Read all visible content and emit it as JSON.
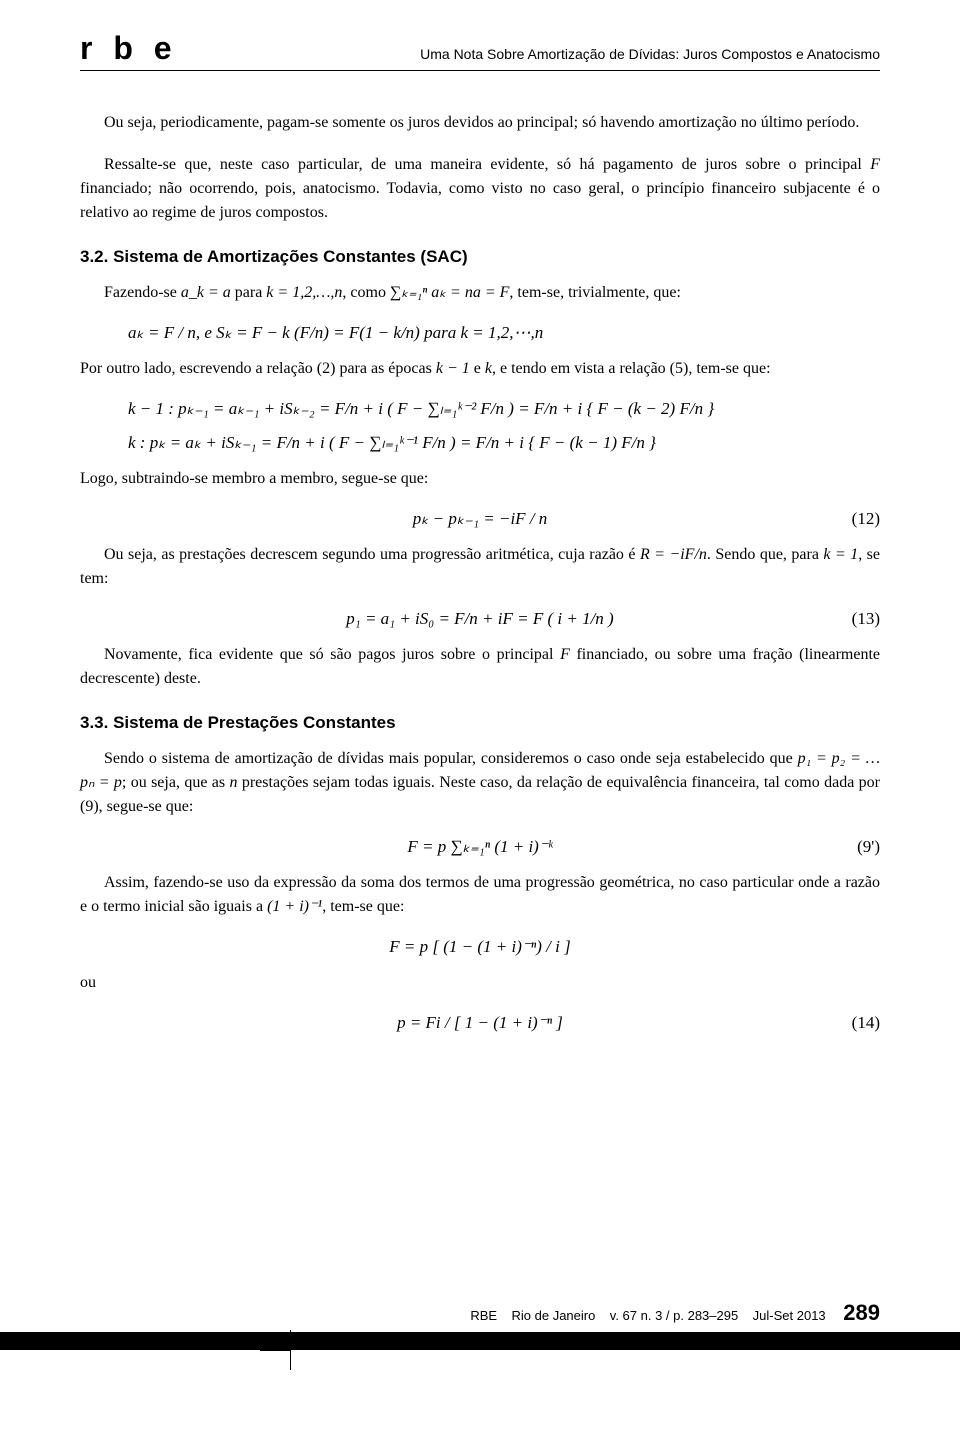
{
  "header": {
    "journal_logo": "r b e",
    "running_title": "Uma Nota Sobre Amortização de Dívidas: Juros Compostos e Anatocismo"
  },
  "para1": "Ou seja, periodicamente, pagam-se somente os juros devidos ao principal; só havendo amortização no último período.",
  "para2_a": "Ressalte-se que, neste caso particular, de uma maneira evidente, só há pagamento de juros sobre o principal ",
  "para2_F": "F",
  "para2_b": " financiado; não ocorrendo, pois, anatocismo. Todavia, como visto no caso geral, o princípio financeiro subjacente é o relativo ao regime de juros compostos.",
  "sec32_heading": "3.2. Sistema de Amortizações Constantes (SAC)",
  "sec32_p1_a": "Fazendo-se ",
  "sec32_p1_m1": "a_k = a",
  "sec32_p1_b": " para ",
  "sec32_p1_m2": "k = 1,2,…,n",
  "sec32_p1_c": ", como ",
  "sec32_p1_m3": "∑ₖ₌₁ⁿ aₖ = na = F",
  "sec32_p1_d": ", tem-se, trivialmente, que:",
  "eq_sac_line": "aₖ = F / n,      e      Sₖ = F − k (F/n) = F(1 − k/n)      para      k = 1,2,⋯,n",
  "sec32_p2_a": "Por outro lado, escrevendo a relação (2) para as épocas ",
  "sec32_p2_m1": "k − 1",
  "sec32_p2_b": " e ",
  "sec32_p2_m2": "k",
  "sec32_p2_c": ", e tendo em vista a relação (5), tem-se que:",
  "eq_km1": "k − 1  :   pₖ₋₁ = aₖ₋₁ + iSₖ₋₂ = F/n + i ( F − ∑ₗ₌₁ᵏ⁻² F/n ) = F/n + i { F − (k − 2) F/n }",
  "eq_k": "k  :   pₖ = aₖ + iSₖ₋₁ = F/n + i ( F − ∑ₗ₌₁ᵏ⁻¹ F/n ) = F/n + i { F − (k − 1) F/n }",
  "sec32_p3": "Logo, subtraindo-se membro a membro, segue-se que:",
  "eq12": "pₖ − pₖ₋₁ = −iF / n",
  "eq12_num": "(12)",
  "sec32_p4_a": "Ou seja, as prestações decrescem segundo uma progressão aritmética, cuja razão é ",
  "sec32_p4_m1": "R = −iF/n",
  "sec32_p4_b": ". Sendo que, para ",
  "sec32_p4_m2": "k = 1",
  "sec32_p4_c": ", se tem:",
  "eq13": "p₁ = a₁ + iS₀ = F/n + iF = F ( i + 1/n )",
  "eq13_num": "(13)",
  "sec32_p5_a": "Novamente, fica evidente que só são pagos juros sobre o principal ",
  "sec32_p5_m1": "F",
  "sec32_p5_b": " financiado, ou sobre uma fração (linearmente decrescente) deste.",
  "sec33_heading": "3.3. Sistema de Prestações Constantes",
  "sec33_p1_a": "Sendo o sistema de amortização de dívidas mais popular, consideremos o caso onde seja estabelecido que ",
  "sec33_p1_m1": "p₁ = p₂ = … pₙ = p",
  "sec33_p1_b": "; ou seja, que as ",
  "sec33_p1_m2": "n",
  "sec33_p1_c": " prestações sejam todas iguais. Neste caso, da relação de equivalência financeira, tal como dada por (9), segue-se que:",
  "eq9p": "F = p ∑ₖ₌₁ⁿ (1 + i)⁻ᵏ",
  "eq9p_num": "(9')",
  "sec33_p2_a": "Assim, fazendo-se uso da expressão da soma dos termos de uma progressão geométrica, no caso particular onde a razão e o termo inicial são iguais a ",
  "sec33_p2_m1": "(1 + i)⁻¹",
  "sec33_p2_b": ", tem-se que:",
  "eq_frac": "F = p [ (1 − (1 + i)⁻ⁿ) / i ]",
  "ou": "ou",
  "eq14": "p = Fi / [ 1 − (1 + i)⁻ⁿ ]",
  "eq14_num": "(14)",
  "footer": {
    "journal": "RBE",
    "city": "Rio de Janeiro",
    "issue": "v. 67 n. 3 / p. 283–295",
    "season": "Jul-Set 2013",
    "page": "289"
  }
}
